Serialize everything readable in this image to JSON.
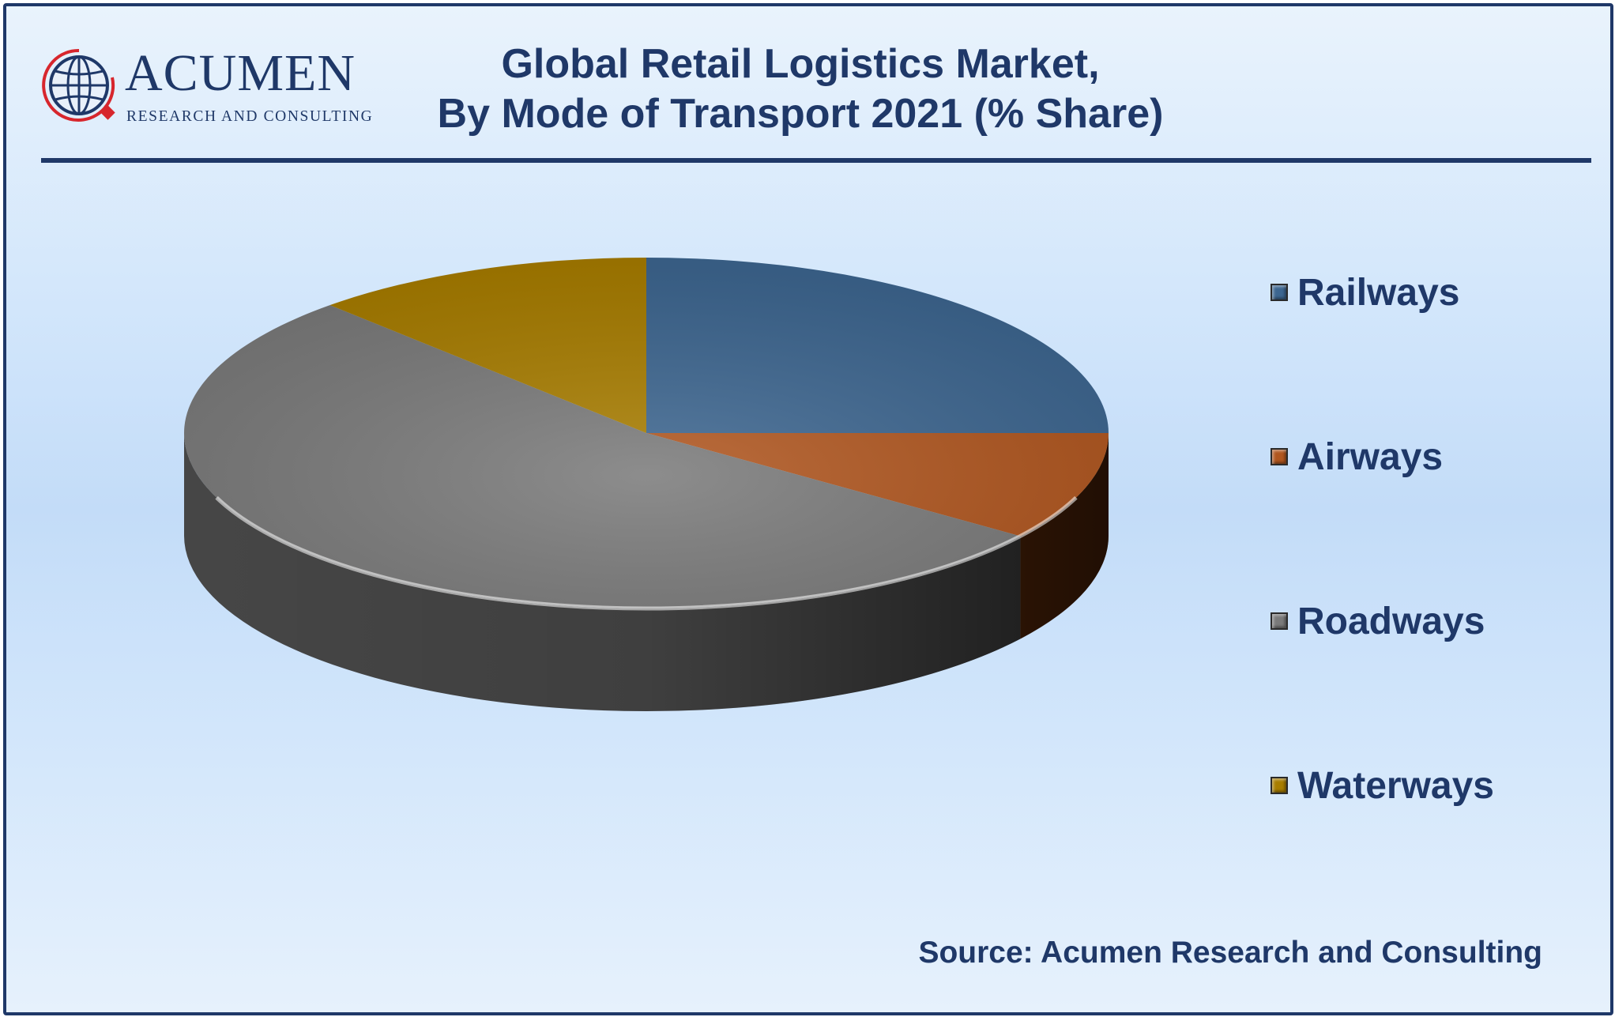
{
  "brand": {
    "name": "ACUMEN",
    "tagline": "RESEARCH AND CONSULTING"
  },
  "header": {
    "title_line1": "Global Retail Logistics Market,",
    "title_line2": "By Mode of Transport 2021 (% Share)"
  },
  "chart_data": {
    "type": "pie",
    "style": "3d",
    "title": "Global Retail Logistics Market, By Mode of Transport 2021 (% Share)",
    "legend_position": "right",
    "categories": [
      "Railways",
      "Airways",
      "Roadways",
      "Waterways"
    ],
    "values": [
      25,
      10,
      53,
      12
    ],
    "unit": "% share",
    "colors": [
      "#3d6690",
      "#b0561f",
      "#7a7a7a",
      "#a87d00"
    ],
    "side_colors": [
      "#213a56",
      "#5e2a0a",
      "#4a4a4a",
      "#5a4300"
    ]
  },
  "footer": {
    "source": "Source: Acumen Research and Consulting"
  }
}
